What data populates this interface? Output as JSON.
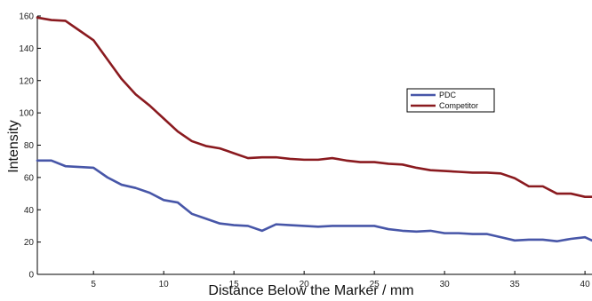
{
  "chart_data": {
    "type": "line",
    "title": "",
    "xlabel": "Distance Below the Marker / mm",
    "ylabel": "Intensity",
    "xlim": [
      1,
      40.5
    ],
    "ylim": [
      0,
      160
    ],
    "x_ticks": [
      5,
      10,
      15,
      20,
      25,
      30,
      35,
      40
    ],
    "y_ticks": [
      0,
      20,
      40,
      60,
      80,
      100,
      120,
      140,
      160
    ],
    "grid": false,
    "legend_position": "upper-middle-right",
    "colors": {
      "axis": "#000000",
      "PDC": "#4756a8",
      "Competitor": "#8a1a1f"
    },
    "series": [
      {
        "name": "PDC",
        "color": "#4756a8",
        "x": [
          1,
          2,
          3,
          4,
          5,
          6,
          7,
          8,
          9,
          10,
          11,
          12,
          13,
          14,
          15,
          16,
          17,
          18,
          19,
          20,
          21,
          22,
          23,
          24,
          25,
          26,
          27,
          28,
          29,
          30,
          31,
          32,
          33,
          34,
          35,
          36,
          37,
          38,
          39,
          40,
          40.5
        ],
        "y": [
          70.5,
          70.5,
          67,
          66.5,
          66,
          60,
          55.5,
          53.5,
          50.5,
          46,
          44.5,
          37.5,
          34.5,
          31.5,
          30.5,
          30,
          27,
          31,
          30.5,
          30,
          29.5,
          30,
          30,
          30,
          30,
          28,
          27,
          26.5,
          27,
          25.5,
          25.5,
          25,
          25,
          23,
          21,
          21.5,
          21.5,
          20.5,
          22,
          23,
          21
        ]
      },
      {
        "name": "Competitor",
        "color": "#8a1a1f",
        "x": [
          1,
          2,
          3,
          4,
          5,
          6,
          7,
          8,
          9,
          10,
          11,
          12,
          13,
          14,
          15,
          16,
          17,
          18,
          19,
          20,
          21,
          22,
          23,
          24,
          25,
          26,
          27,
          28,
          29,
          30,
          31,
          32,
          33,
          34,
          35,
          36,
          37,
          38,
          39,
          40,
          40.5
        ],
        "y": [
          159,
          157.5,
          157,
          151,
          145,
          133,
          121,
          111.5,
          104.5,
          96.5,
          88.5,
          82.5,
          79.5,
          78,
          75,
          72,
          72.5,
          72.5,
          71.5,
          71,
          71,
          72,
          70.5,
          69.5,
          69.5,
          68.5,
          68,
          66,
          64.5,
          64,
          63.5,
          63,
          63,
          62.5,
          59.5,
          54.5,
          54.5,
          50,
          50,
          48,
          48
        ]
      }
    ]
  }
}
